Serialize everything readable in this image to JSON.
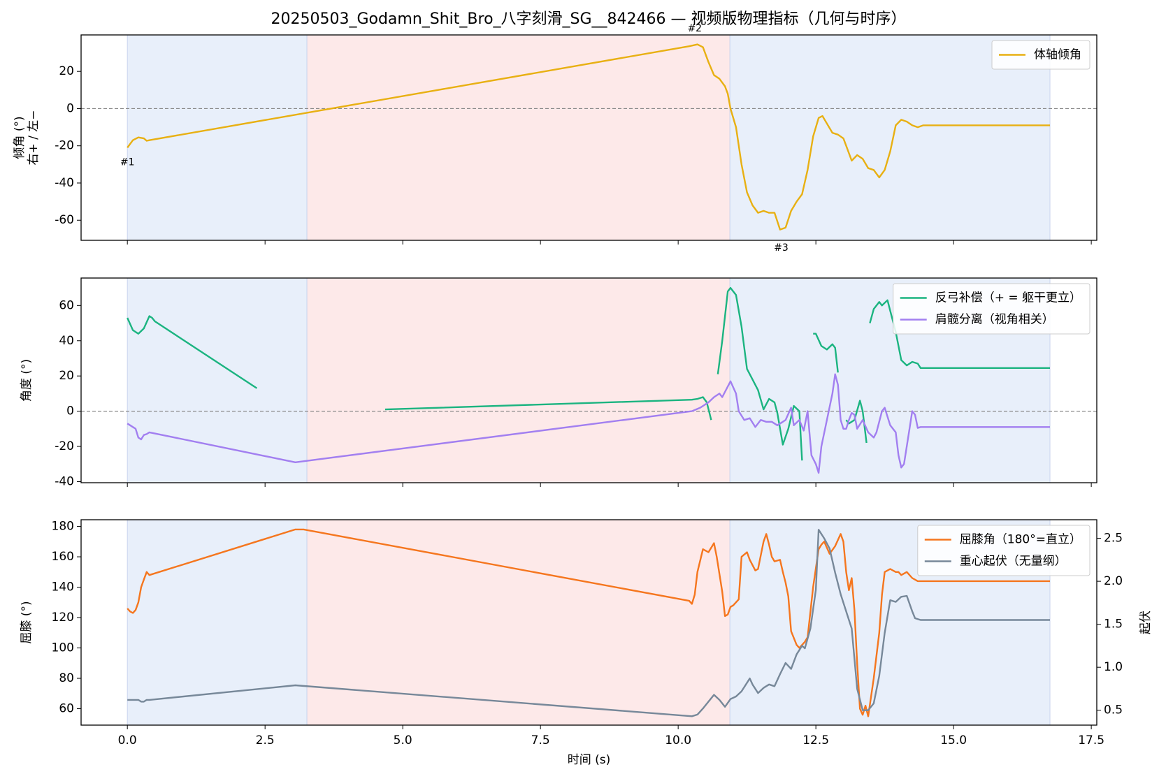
{
  "chart_data": [
    {
      "type": "line",
      "title": "20250503_Godamn_Shit_Bro_八字刻滑_SG__842466 — 视频版物理指标（几何与时序）",
      "ylabel": [
        "倾角 (°)",
        "右+ / 左−"
      ],
      "ylim": [
        -70.8,
        39.6
      ],
      "yticks": [
        -60,
        -40,
        -20,
        0,
        20
      ],
      "hline": 0,
      "legend": "upper right",
      "spans": [
        {
          "start": 0,
          "end": 3.26,
          "color": "#e8effa"
        },
        {
          "start": 3.26,
          "end": 10.94,
          "color": "#fde9e9"
        },
        {
          "start": 10.94,
          "end": 16.75,
          "color": "#e8effa"
        }
      ],
      "annotations": [
        {
          "text": "#1",
          "x": 0,
          "y": -29
        },
        {
          "text": "#2",
          "x": 10.3,
          "y": 43
        },
        {
          "text": "#3",
          "x": 11.87,
          "y": -75
        }
      ],
      "series": [
        {
          "name": "体轴倾角",
          "color": "#e8b012",
          "x": [
            0,
            0.1,
            0.2,
            0.3,
            0.35,
            0.4,
            10.2,
            10.35,
            10.45,
            10.55,
            10.65,
            10.75,
            10.85,
            10.9,
            10.95,
            11.05,
            11.15,
            11.25,
            11.35,
            11.45,
            11.55,
            11.65,
            11.75,
            11.85,
            11.95,
            12.05,
            12.15,
            12.25,
            12.35,
            12.45,
            12.55,
            12.62,
            12.7,
            12.8,
            12.9,
            13.0,
            13.05,
            13.15,
            13.25,
            13.35,
            13.45,
            13.55,
            13.65,
            13.75,
            13.85,
            13.95,
            14.05,
            14.15,
            14.25,
            14.35,
            14.45,
            16.75
          ],
          "values": [
            -21,
            -17,
            -15.5,
            -16,
            -17.3,
            -17,
            33.5,
            34.5,
            33,
            25,
            18,
            16,
            12,
            8,
            0,
            -10,
            -30,
            -45,
            -52,
            -56,
            -55,
            -56,
            -56,
            -65,
            -64,
            -55,
            -50,
            -46,
            -33,
            -15,
            -5,
            -4,
            -8,
            -13,
            -14,
            -16,
            -20,
            -28,
            -25,
            -27,
            -32,
            -33,
            -37,
            -33,
            -23,
            -9,
            -6,
            -7,
            -9,
            -10,
            -9,
            -9
          ]
        }
      ]
    },
    {
      "type": "line",
      "ylabel": [
        "角度 (°)"
      ],
      "ylim": [
        -40.6,
        75.6
      ],
      "yticks": [
        -40,
        -20,
        0,
        20,
        40,
        60
      ],
      "hline": 0,
      "legend": "upper right",
      "spans": [
        {
          "start": 0,
          "end": 3.26,
          "color": "#e8effa"
        },
        {
          "start": 3.26,
          "end": 10.94,
          "color": "#fde9e9"
        },
        {
          "start": 10.94,
          "end": 16.75,
          "color": "#e8effa"
        }
      ],
      "series": [
        {
          "name": "反弓补偿（+ = 躯干更立）",
          "color": "#1bb480",
          "x": [
            0,
            0.1,
            0.2,
            0.3,
            0.4,
            0.45,
            0.5,
            2.35,
            3.5,
            4.68,
            10.25,
            10.35,
            10.45,
            10.52,
            10.6,
            10.66,
            10.72,
            10.8,
            10.9,
            10.95,
            11.05,
            11.15,
            11.25,
            11.35,
            11.45,
            11.55,
            11.65,
            11.75,
            11.8,
            11.9,
            12.0,
            12.1,
            12.2,
            12.25,
            12.35,
            12.45,
            12.5,
            12.6,
            12.7,
            12.8,
            12.85,
            12.9,
            12.98,
            13.05,
            13.1,
            13.2,
            13.3,
            13.35,
            13.42,
            13.45,
            13.48,
            13.55,
            13.65,
            13.7,
            13.8,
            13.85,
            13.95,
            14.05,
            14.15,
            14.25,
            14.35,
            14.4,
            16.75
          ],
          "values": [
            53,
            46,
            44,
            47,
            54,
            53,
            51,
            13,
            null,
            1,
            6.5,
            7,
            8,
            5,
            -5,
            null,
            21,
            40,
            68,
            70,
            66,
            48,
            24,
            18,
            12,
            1,
            7,
            5,
            -1,
            -19,
            -10,
            3,
            0,
            -28,
            null,
            44,
            44,
            37,
            35,
            38,
            36,
            22,
            null,
            -5,
            -7,
            -5,
            6,
            0,
            -18,
            null,
            50,
            58,
            62,
            60,
            63,
            57,
            45,
            29,
            26,
            28,
            27,
            24.5,
            24.5
          ]
        },
        {
          "name": "肩髋分离（视角相关）",
          "color": "#a27ff0",
          "x": [
            0,
            0.1,
            0.15,
            0.2,
            0.25,
            0.3,
            0.35,
            0.4,
            3.05,
            10.25,
            10.4,
            10.55,
            10.65,
            10.75,
            10.8,
            10.9,
            10.95,
            11.05,
            11.1,
            11.2,
            11.3,
            11.4,
            11.5,
            11.6,
            11.7,
            11.8,
            11.9,
            11.95,
            12.05,
            12.1,
            12.2,
            12.28,
            12.35,
            12.42,
            12.5,
            12.55,
            12.6,
            12.7,
            12.8,
            12.85,
            12.9,
            12.95,
            13.0,
            13.05,
            13.1,
            13.15,
            13.2,
            13.25,
            13.35,
            13.45,
            13.55,
            13.6,
            13.7,
            13.75,
            13.85,
            13.95,
            14.0,
            14.05,
            14.1,
            14.2,
            14.25,
            14.3,
            14.35,
            14.4,
            16.75
          ],
          "values": [
            -7,
            -9,
            -10,
            -15,
            -16,
            -13.5,
            -13,
            -12,
            -29,
            0,
            2,
            5,
            8,
            10,
            8,
            14,
            17,
            10,
            0,
            -5,
            -4,
            -9,
            -5,
            -6,
            -6,
            -8,
            -6,
            -5,
            2,
            -8,
            -5,
            -11,
            0,
            -25,
            -30,
            -35,
            -20,
            -5,
            10,
            21,
            15,
            -5,
            -10,
            -10,
            -5,
            -1,
            -2,
            -10,
            -5,
            -12,
            -15,
            -12,
            0,
            2,
            -8,
            -12,
            -25,
            -32,
            -30,
            -10,
            0,
            -2,
            -9.5,
            -9,
            -9
          ]
        }
      ]
    },
    {
      "type": "line",
      "xlabel": "时间 (s)",
      "ylabel": [
        "屈膝 (°)"
      ],
      "y2label": "起伏",
      "xlim": [
        -0.84,
        17.6
      ],
      "xticks": [
        {
          "value": 0,
          "label": "0.0"
        },
        2.5,
        {
          "value": 5,
          "label": "5.0"
        },
        7.5,
        {
          "value": 10,
          "label": "10.0"
        },
        12.5,
        {
          "value": 15,
          "label": "15.0"
        },
        17.5
      ],
      "ylim": [
        49.2,
        184.4
      ],
      "yticks": [
        60,
        80,
        100,
        120,
        140,
        160,
        180
      ],
      "y2lim": [
        0.327,
        2.716
      ],
      "y2ticks": [
        0.5,
        {
          "value": 1,
          "label": "1.0"
        },
        1.5,
        {
          "value": 2,
          "label": "2.0"
        },
        2.5
      ],
      "legend": "upper right",
      "spans": [
        {
          "start": 0,
          "end": 3.26,
          "color": "#e8effa"
        },
        {
          "start": 3.26,
          "end": 10.94,
          "color": "#fde9e9"
        },
        {
          "start": 10.94,
          "end": 16.75,
          "color": "#e8effa"
        }
      ],
      "series": [
        {
          "name": "屈膝角（180°=直立）",
          "color": "#f5761e",
          "x": [
            0,
            0.05,
            0.1,
            0.15,
            0.2,
            0.25,
            0.3,
            0.35,
            0.4,
            3.05,
            3.2,
            10.2,
            10.25,
            10.3,
            10.35,
            10.45,
            10.55,
            10.65,
            10.7,
            10.8,
            10.85,
            10.9,
            10.95,
            11.0,
            11.1,
            11.15,
            11.25,
            11.3,
            11.4,
            11.45,
            11.55,
            11.6,
            11.65,
            11.7,
            11.75,
            11.85,
            11.9,
            11.95,
            12.0,
            12.05,
            12.15,
            12.2,
            12.3,
            12.35,
            12.45,
            12.55,
            12.6,
            12.65,
            12.75,
            12.85,
            12.95,
            13.0,
            13.05,
            13.1,
            13.15,
            13.2,
            13.25,
            13.3,
            13.35,
            13.4,
            13.45,
            13.55,
            13.65,
            13.7,
            13.75,
            13.85,
            13.95,
            14.0,
            14.05,
            14.15,
            14.25,
            14.35,
            16.75
          ],
          "values": [
            126,
            124,
            123,
            125,
            130,
            140,
            145,
            150,
            148,
            178,
            178,
            131,
            129,
            135,
            150,
            165,
            163,
            169,
            160,
            137,
            121,
            122,
            127,
            128,
            132,
            160,
            163,
            158,
            151,
            152,
            170,
            175,
            168,
            160,
            157,
            158,
            150,
            143,
            134,
            111,
            102,
            100,
            104,
            107,
            140,
            165,
            168,
            170,
            162,
            167,
            175,
            170,
            150,
            138,
            146,
            125,
            90,
            60,
            56,
            62,
            55,
            80,
            110,
            135,
            150,
            152,
            150,
            150,
            148,
            150,
            146,
            144,
            144
          ]
        },
        {
          "name": "重心起伏（无量纲）",
          "color": "#778899",
          "axis": "y2",
          "x": [
            0,
            0.1,
            0.2,
            0.25,
            0.3,
            0.35,
            0.4,
            3.05,
            10.25,
            10.35,
            10.45,
            10.55,
            10.65,
            10.75,
            10.85,
            10.95,
            11.05,
            11.15,
            11.3,
            11.35,
            11.45,
            11.55,
            11.65,
            11.75,
            11.85,
            11.95,
            12.05,
            12.15,
            12.25,
            12.3,
            12.4,
            12.5,
            12.55,
            12.65,
            12.75,
            12.85,
            12.95,
            13.05,
            13.15,
            13.2,
            13.25,
            13.35,
            13.45,
            13.55,
            13.65,
            13.75,
            13.85,
            13.95,
            14.05,
            14.15,
            14.25,
            14.3,
            14.4,
            16.75
          ],
          "values": [
            0.62,
            0.62,
            0.62,
            0.6,
            0.6,
            0.62,
            0.62,
            0.79,
            0.43,
            0.45,
            0.52,
            0.6,
            0.68,
            0.62,
            0.54,
            0.63,
            0.66,
            0.72,
            0.87,
            0.8,
            0.7,
            0.76,
            0.8,
            0.78,
            0.92,
            1.05,
            0.98,
            1.15,
            1.25,
            1.22,
            1.45,
            1.9,
            2.6,
            2.5,
            2.38,
            2.1,
            1.85,
            1.65,
            1.45,
            1.1,
            0.75,
            0.5,
            0.5,
            0.58,
            0.9,
            1.4,
            1.78,
            1.76,
            1.82,
            1.83,
            1.65,
            1.57,
            1.55,
            1.55
          ]
        }
      ]
    }
  ]
}
